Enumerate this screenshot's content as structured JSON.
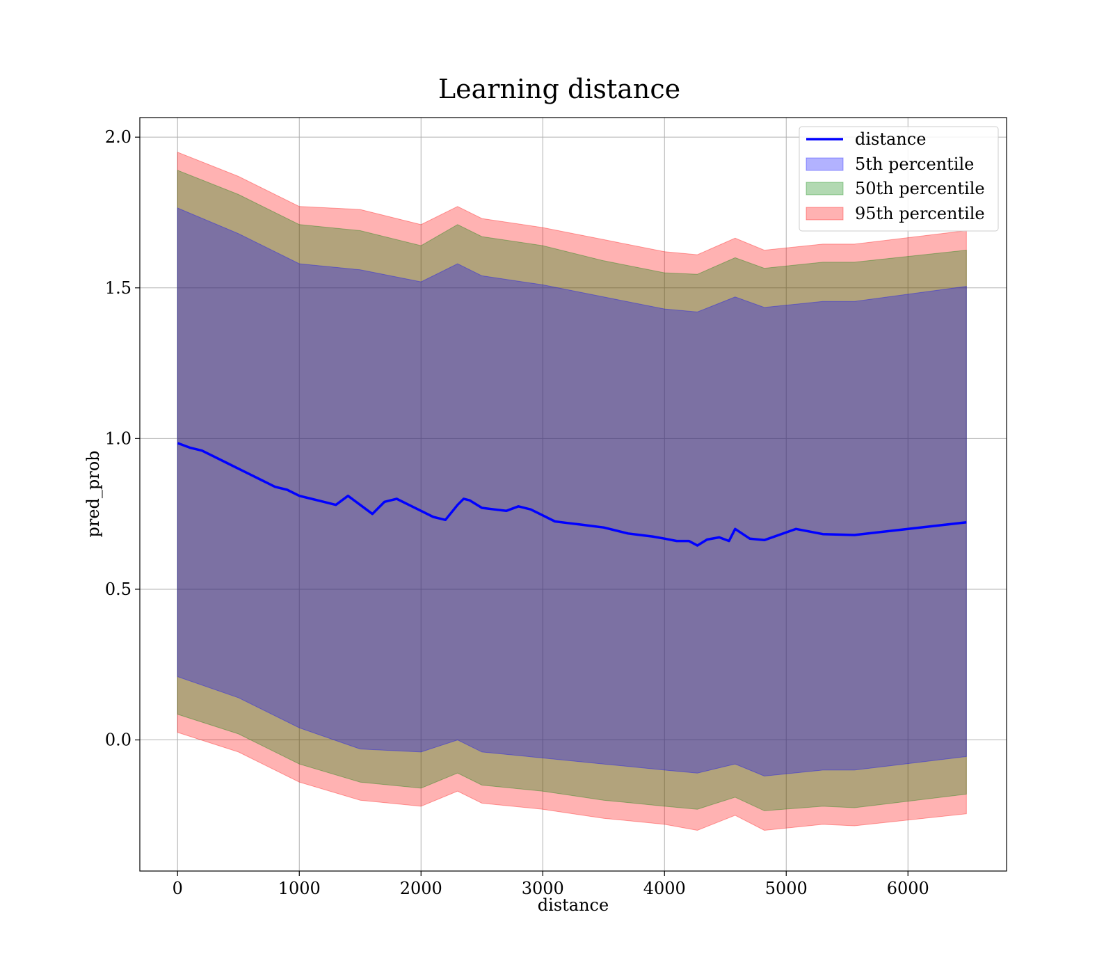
{
  "chart_data": {
    "type": "line",
    "title": "Learning distance",
    "xlabel": "distance",
    "ylabel": "pred_prob",
    "xlim": [
      -310,
      6810
    ],
    "ylim": [
      -0.435,
      2.065
    ],
    "xticks": [
      0,
      1000,
      2000,
      3000,
      4000,
      5000,
      6000
    ],
    "xtick_labels": [
      "0",
      "1000",
      "2000",
      "3000",
      "4000",
      "5000",
      "6000"
    ],
    "yticks": [
      0.0,
      0.5,
      1.0,
      1.5,
      2.0
    ],
    "ytick_labels": [
      "0.0",
      "0.5",
      "1.0",
      "1.5",
      "2.0"
    ],
    "grid": true,
    "legend_position": "top-right",
    "legend": [
      {
        "label": "distance",
        "kind": "line",
        "color": "#0000ff"
      },
      {
        "label": "5th percentile",
        "kind": "patch",
        "color": "#0000ff"
      },
      {
        "label": "50th percentile",
        "kind": "patch",
        "color": "#008000"
      },
      {
        "label": "95th percentile",
        "kind": "patch",
        "color": "#ff0000"
      }
    ],
    "line": {
      "name": "distance",
      "color": "#0000ff",
      "x": [
        0,
        100,
        200,
        300,
        400,
        500,
        600,
        700,
        800,
        900,
        1000,
        1100,
        1200,
        1300,
        1400,
        1500,
        1600,
        1700,
        1800,
        1900,
        2000,
        2100,
        2200,
        2300,
        2350,
        2400,
        2500,
        2600,
        2700,
        2800,
        2900,
        3000,
        3100,
        3200,
        3300,
        3400,
        3500,
        3600,
        3700,
        3800,
        3900,
        4000,
        4100,
        4200,
        4270,
        4350,
        4450,
        4530,
        4580,
        4700,
        4820,
        5080,
        5300,
        5560,
        6480
      ],
      "y": [
        0.985,
        0.97,
        0.96,
        0.94,
        0.92,
        0.9,
        0.88,
        0.86,
        0.84,
        0.83,
        0.81,
        0.8,
        0.79,
        0.78,
        0.81,
        0.78,
        0.75,
        0.79,
        0.8,
        0.78,
        0.76,
        0.74,
        0.73,
        0.78,
        0.8,
        0.795,
        0.77,
        0.765,
        0.76,
        0.775,
        0.765,
        0.745,
        0.725,
        0.72,
        0.715,
        0.71,
        0.705,
        0.695,
        0.685,
        0.68,
        0.675,
        0.668,
        0.66,
        0.66,
        0.645,
        0.665,
        0.672,
        0.66,
        0.7,
        0.668,
        0.663,
        0.7,
        0.683,
        0.68,
        0.722
      ]
    },
    "bands": [
      {
        "name": "5th percentile",
        "color": "#0000ff",
        "x": [
          0,
          500,
          1000,
          1500,
          2000,
          2300,
          2500,
          3000,
          3500,
          4000,
          4270,
          4580,
          4820,
          5300,
          5560,
          6480
        ],
        "lower": [
          0.21,
          0.14,
          0.04,
          -0.03,
          -0.04,
          0.0,
          -0.04,
          -0.06,
          -0.08,
          -0.1,
          -0.11,
          -0.08,
          -0.12,
          -0.1,
          -0.1,
          -0.055
        ],
        "upper": [
          1.765,
          1.68,
          1.58,
          1.56,
          1.52,
          1.58,
          1.54,
          1.51,
          1.47,
          1.43,
          1.42,
          1.47,
          1.435,
          1.455,
          1.455,
          1.505
        ]
      },
      {
        "name": "50th percentile",
        "color": "#008000",
        "x": [
          0,
          500,
          1000,
          1500,
          2000,
          2300,
          2500,
          3000,
          3500,
          4000,
          4270,
          4580,
          4820,
          5300,
          5560,
          6480
        ],
        "lower": [
          0.085,
          0.02,
          -0.08,
          -0.14,
          -0.16,
          -0.11,
          -0.15,
          -0.17,
          -0.2,
          -0.22,
          -0.23,
          -0.19,
          -0.235,
          -0.22,
          -0.225,
          -0.18
        ],
        "upper": [
          1.89,
          1.81,
          1.71,
          1.69,
          1.64,
          1.71,
          1.67,
          1.64,
          1.59,
          1.55,
          1.545,
          1.6,
          1.565,
          1.585,
          1.585,
          1.625
        ]
      },
      {
        "name": "95th percentile",
        "color": "#ff0000",
        "x": [
          0,
          500,
          1000,
          1500,
          2000,
          2300,
          2500,
          3000,
          3500,
          4000,
          4270,
          4580,
          4820,
          5300,
          5560,
          6480
        ],
        "lower": [
          0.025,
          -0.04,
          -0.14,
          -0.2,
          -0.22,
          -0.17,
          -0.21,
          -0.23,
          -0.26,
          -0.28,
          -0.3,
          -0.25,
          -0.3,
          -0.28,
          -0.285,
          -0.245
        ],
        "upper": [
          1.95,
          1.87,
          1.77,
          1.76,
          1.71,
          1.77,
          1.73,
          1.7,
          1.66,
          1.62,
          1.61,
          1.665,
          1.625,
          1.645,
          1.645,
          1.69
        ]
      }
    ]
  }
}
